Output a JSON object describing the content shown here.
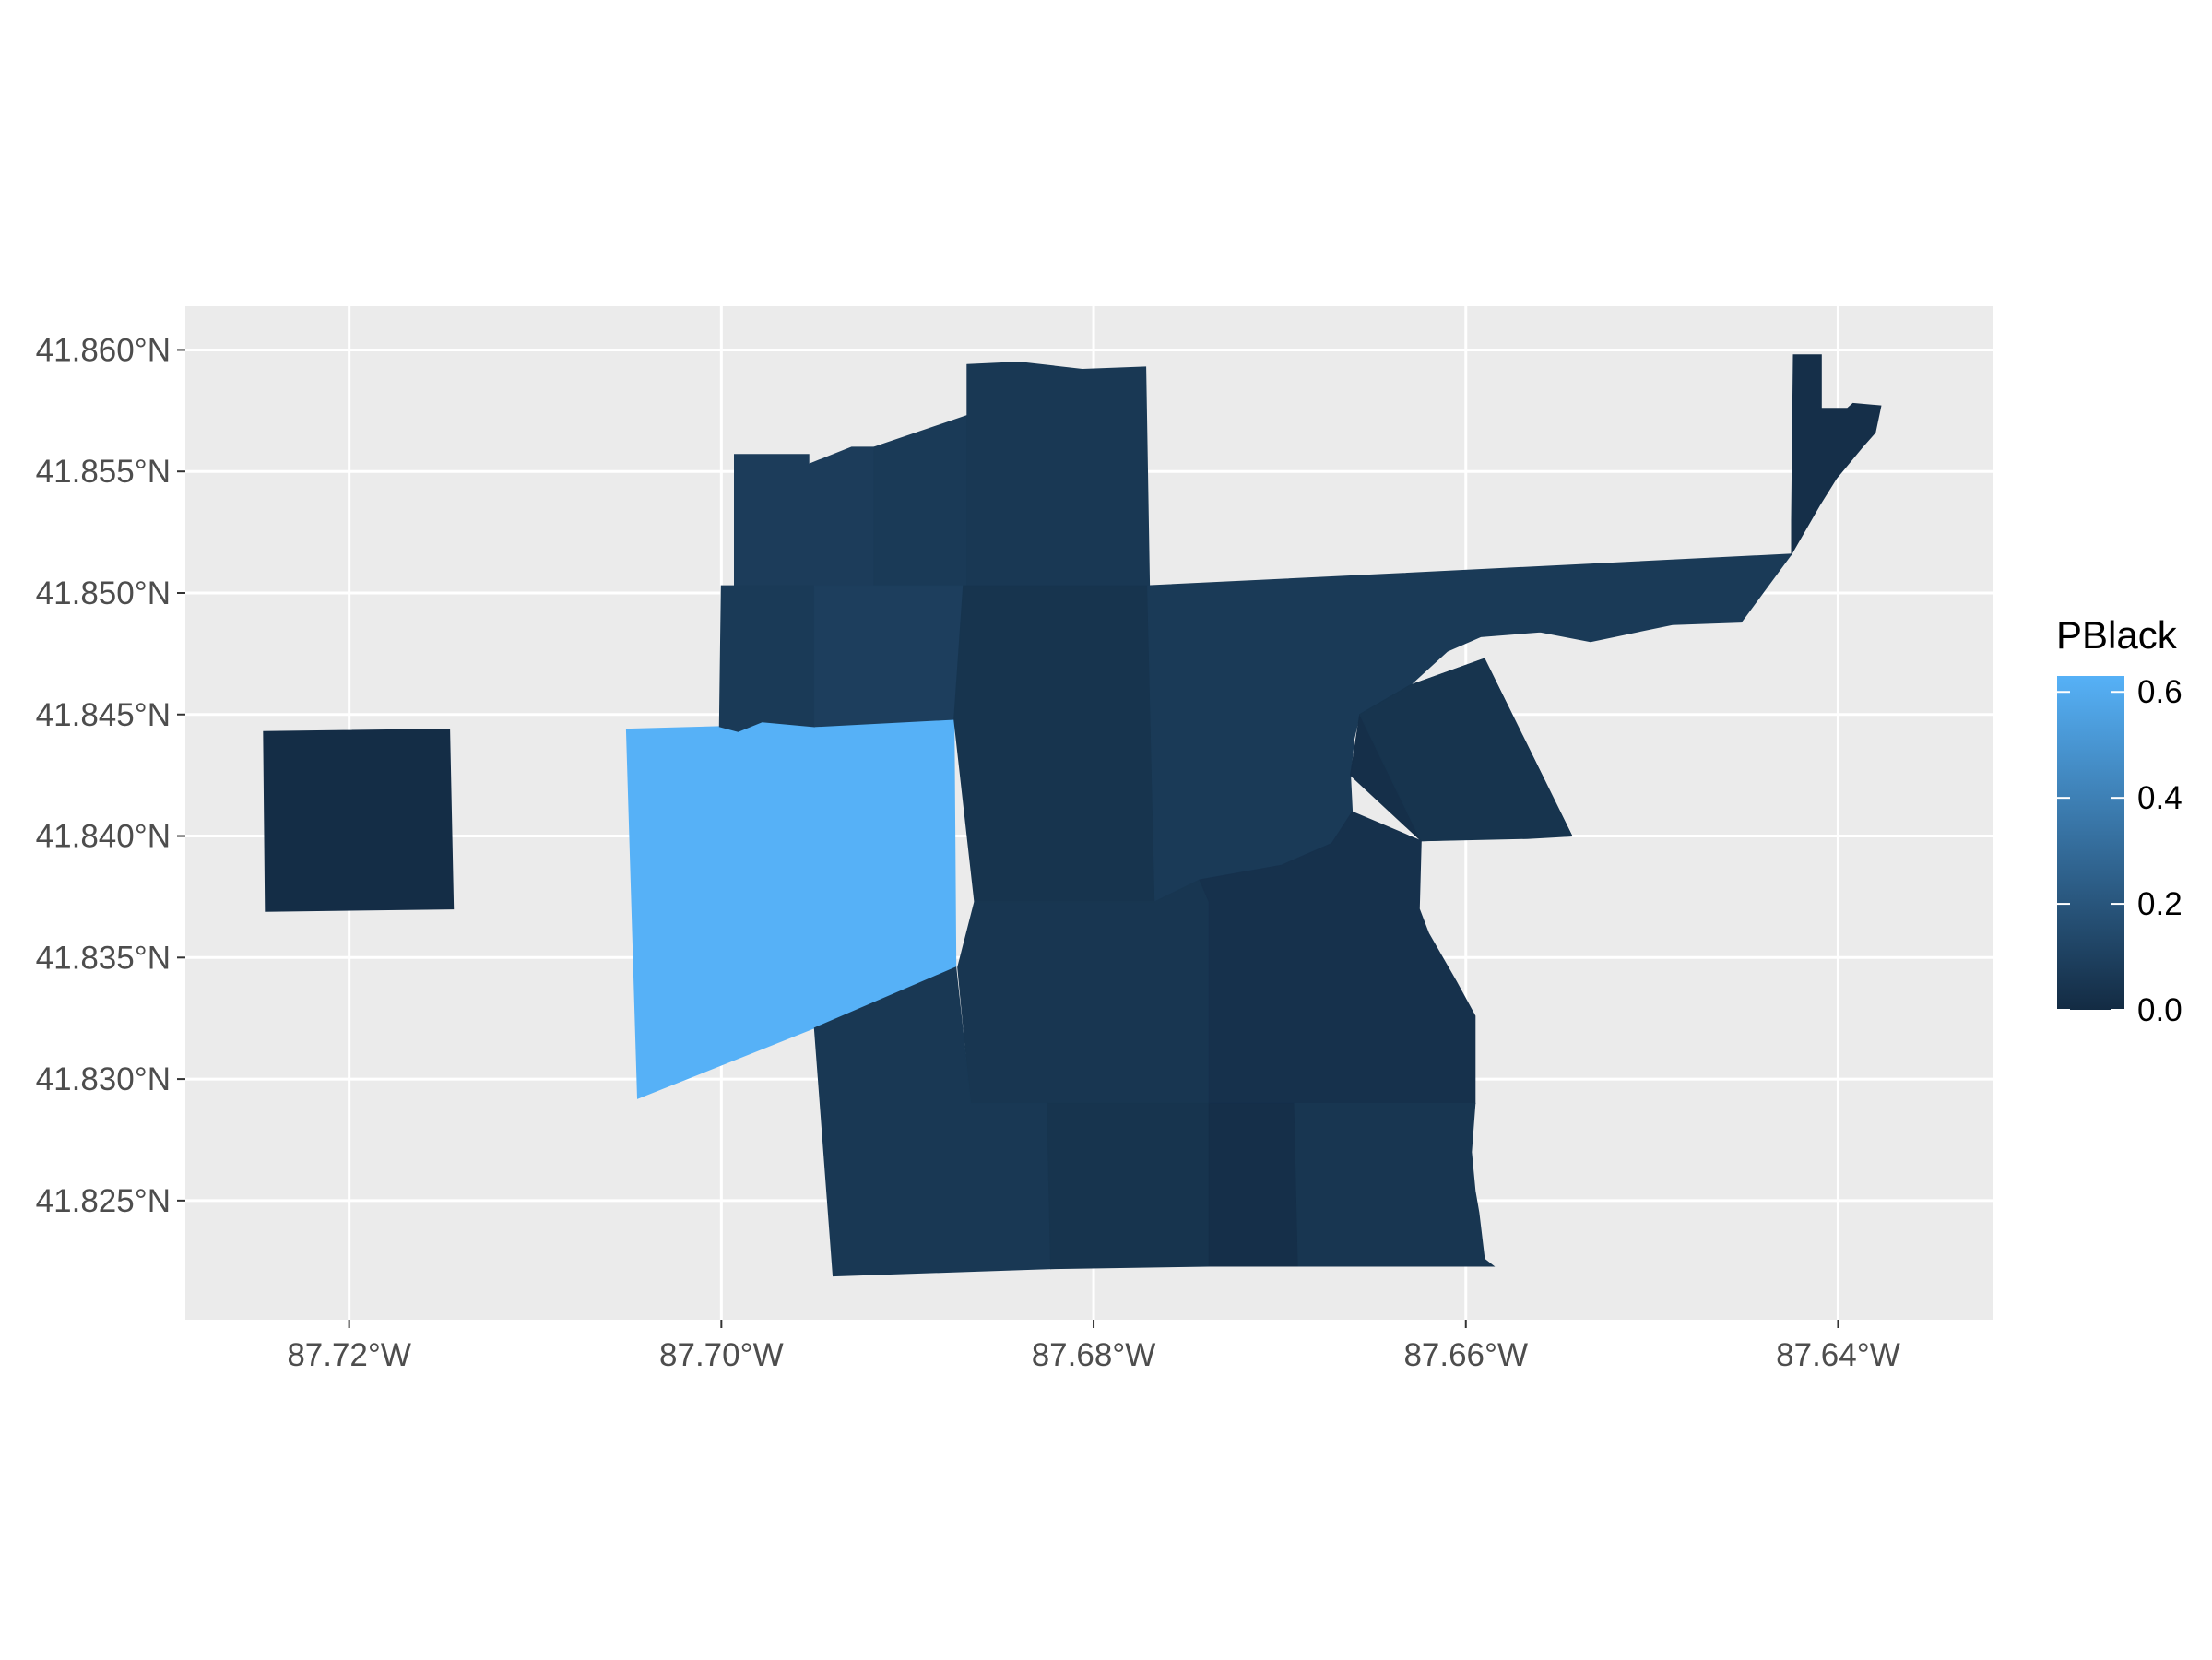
{
  "chart_data": {
    "type": "choropleth",
    "title": "",
    "xlabel": "",
    "ylabel": "",
    "grid": true,
    "legend_position": "right",
    "xlim": [
      -87.7288,
      -87.6317
    ],
    "ylim": [
      41.8201,
      41.8618
    ],
    "x_ticks": [
      {
        "value": -87.72,
        "label": "87.72°W"
      },
      {
        "value": -87.7,
        "label": "87.70°W"
      },
      {
        "value": -87.68,
        "label": "87.68°W"
      },
      {
        "value": -87.66,
        "label": "87.66°W"
      },
      {
        "value": -87.64,
        "label": "87.64°W"
      }
    ],
    "y_ticks": [
      {
        "value": 41.86,
        "label": "41.860°N"
      },
      {
        "value": 41.855,
        "label": "41.855°N"
      },
      {
        "value": 41.85,
        "label": "41.850°N"
      },
      {
        "value": 41.845,
        "label": "41.845°N"
      },
      {
        "value": 41.84,
        "label": "41.840°N"
      },
      {
        "value": 41.835,
        "label": "41.835°N"
      },
      {
        "value": 41.83,
        "label": "41.830°N"
      },
      {
        "value": 41.825,
        "label": "41.825°N"
      }
    ],
    "legend": {
      "title": "PBlack",
      "min": 0.0,
      "max": 0.63,
      "color_low": "#132B43",
      "color_high": "#56B1F7",
      "breaks": [
        {
          "value": 0.0,
          "label": "0.0"
        },
        {
          "value": 0.2,
          "label": "0.2"
        },
        {
          "value": 0.4,
          "label": "0.4"
        },
        {
          "value": 0.6,
          "label": "0.6"
        }
      ]
    },
    "regions": [
      {
        "id": "tract-west-isolated",
        "value": 0.01,
        "coords": [
          [
            -87.7246,
            41.8443
          ],
          [
            -87.7146,
            41.8444
          ],
          [
            -87.7144,
            41.837
          ],
          [
            -87.7245,
            41.8369
          ]
        ]
      },
      {
        "id": "tract-high-pblack",
        "value": 0.63,
        "coords": [
          [
            -87.7051,
            41.8444
          ],
          [
            -87.7001,
            41.8445
          ],
          [
            -87.6991,
            41.8443
          ],
          [
            -87.6978,
            41.8447
          ],
          [
            -87.6875,
            41.8448
          ],
          [
            -87.6874,
            41.8346
          ],
          [
            -87.695,
            41.8321
          ],
          [
            -87.7045,
            41.8292
          ]
        ]
      },
      {
        "id": "tract-north-west-a",
        "value": 0.08,
        "coords": [
          [
            -87.6993,
            41.8557
          ],
          [
            -87.6953,
            41.8557
          ],
          [
            -87.6953,
            41.8553
          ],
          [
            -87.693,
            41.856
          ],
          [
            -87.6918,
            41.856
          ],
          [
            -87.6918,
            41.8503
          ],
          [
            -87.6993,
            41.8503
          ]
        ]
      },
      {
        "id": "tract-north-west-b",
        "value": 0.07,
        "coords": [
          [
            -87.6918,
            41.856
          ],
          [
            -87.6868,
            41.8573
          ],
          [
            -87.6868,
            41.8503
          ],
          [
            -87.6918,
            41.8503
          ]
        ]
      },
      {
        "id": "tract-north-mid",
        "value": 0.06,
        "coords": [
          [
            -87.6868,
            41.8594
          ],
          [
            -87.684,
            41.8595
          ],
          [
            -87.6806,
            41.8592
          ],
          [
            -87.6772,
            41.8593
          ],
          [
            -87.677,
            41.8503
          ],
          [
            -87.6868,
            41.8503
          ]
        ]
      },
      {
        "id": "tract-west-upper",
        "value": 0.07,
        "coords": [
          [
            -87.7,
            41.8503
          ],
          [
            -87.695,
            41.8503
          ],
          [
            -87.695,
            41.8445
          ],
          [
            -87.6978,
            41.8447
          ],
          [
            -87.6991,
            41.8443
          ],
          [
            -87.7001,
            41.8445
          ]
        ]
      },
      {
        "id": "tract-west-upper-b",
        "value": 0.09,
        "coords": [
          [
            -87.695,
            41.8503
          ],
          [
            -87.687,
            41.8503
          ],
          [
            -87.6875,
            41.8448
          ],
          [
            -87.695,
            41.8445
          ]
        ]
      },
      {
        "id": "tract-central-upper",
        "value": 0.04,
        "coords": [
          [
            -87.687,
            41.8503
          ],
          [
            -87.6771,
            41.8503
          ],
          [
            -87.6767,
            41.8373
          ],
          [
            -87.6864,
            41.8373
          ],
          [
            -87.6875,
            41.8448
          ]
        ]
      },
      {
        "id": "tract-central-east",
        "value": 0.07,
        "coords": [
          [
            -87.6771,
            41.8503
          ],
          [
            -87.6635,
            41.8508
          ],
          [
            -87.6425,
            41.8516
          ],
          [
            -87.6452,
            41.8488
          ],
          [
            -87.6489,
            41.8487
          ],
          [
            -87.6533,
            41.848
          ],
          [
            -87.656,
            41.8484
          ],
          [
            -87.6592,
            41.8482
          ],
          [
            -87.661,
            41.8476
          ],
          [
            -87.663,
            41.8462
          ],
          [
            -87.6657,
            41.845
          ],
          [
            -87.666,
            41.844
          ],
          [
            -87.6662,
            41.8425
          ],
          [
            -87.6661,
            41.841
          ],
          [
            -87.6672,
            41.8397
          ],
          [
            -87.6699,
            41.8388
          ],
          [
            -87.6743,
            41.8382
          ],
          [
            -87.6767,
            41.8373
          ]
        ]
      },
      {
        "id": "tract-northeast-arm",
        "value": 0.02,
        "coords": [
          [
            -87.6425,
            41.8516
          ],
          [
            -87.641,
            41.8536
          ],
          [
            -87.6401,
            41.8547
          ],
          [
            -87.6387,
            41.856
          ],
          [
            -87.638,
            41.8566
          ],
          [
            -87.6377,
            41.8577
          ],
          [
            -87.6392,
            41.8578
          ],
          [
            -87.6395,
            41.8576
          ],
          [
            -87.6409,
            41.8576
          ],
          [
            -87.6409,
            41.8598
          ],
          [
            -87.6424,
            41.8598
          ],
          [
            -87.6425,
            41.853
          ]
        ]
      },
      {
        "id": "tract-east-wedge",
        "value": 0.02,
        "coords": [
          [
            -87.663,
            41.8462
          ],
          [
            -87.659,
            41.8473
          ],
          [
            -87.6543,
            41.84
          ],
          [
            -87.6624,
            41.8398
          ],
          [
            -87.6662,
            41.8425
          ],
          [
            -87.6657,
            41.845
          ]
        ]
      },
      {
        "id": "tract-east-mid",
        "value": 0.04,
        "coords": [
          [
            -87.6657,
            41.845
          ],
          [
            -87.6624,
            41.8398
          ],
          [
            -87.6567,
            41.8399
          ],
          [
            -87.6543,
            41.84
          ],
          [
            -87.659,
            41.8473
          ],
          [
            -87.663,
            41.8462
          ]
        ]
      },
      {
        "id": "tract-central-lower",
        "value": 0.05,
        "coords": [
          [
            -87.6864,
            41.8373
          ],
          [
            -87.6767,
            41.8373
          ],
          [
            -87.6743,
            41.8382
          ],
          [
            -87.6738,
            41.8373
          ],
          [
            -87.6738,
            41.8282
          ],
          [
            -87.6825,
            41.8282
          ],
          [
            -87.6825,
            41.829
          ],
          [
            -87.6866,
            41.829
          ],
          [
            -87.6873,
            41.8346
          ]
        ]
      },
      {
        "id": "tract-southeast-a",
        "value": 0.03,
        "coords": [
          [
            -87.6738,
            41.8373
          ],
          [
            -87.6743,
            41.8382
          ],
          [
            -87.6699,
            41.8388
          ],
          [
            -87.6672,
            41.8397
          ],
          [
            -87.6661,
            41.841
          ],
          [
            -87.6624,
            41.8398
          ],
          [
            -87.6625,
            41.837
          ],
          [
            -87.662,
            41.836
          ],
          [
            -87.6605,
            41.834
          ],
          [
            -87.6595,
            41.8326
          ],
          [
            -87.6595,
            41.829
          ],
          [
            -87.6738,
            41.829
          ]
        ]
      },
      {
        "id": "tract-south-west",
        "value": 0.06,
        "coords": [
          [
            -87.695,
            41.8321
          ],
          [
            -87.6874,
            41.8346
          ],
          [
            -87.6866,
            41.829
          ],
          [
            -87.6825,
            41.829
          ],
          [
            -87.6823,
            41.8222
          ],
          [
            -87.694,
            41.8219
          ]
        ]
      },
      {
        "id": "tract-south-mid",
        "value": 0.04,
        "coords": [
          [
            -87.6825,
            41.829
          ],
          [
            -87.6738,
            41.829
          ],
          [
            -87.6738,
            41.8223
          ],
          [
            -87.6823,
            41.8222
          ]
        ]
      },
      {
        "id": "tract-south-mid-b",
        "value": 0.02,
        "coords": [
          [
            -87.6738,
            41.829
          ],
          [
            -87.6692,
            41.829
          ],
          [
            -87.669,
            41.8223
          ],
          [
            -87.6738,
            41.8223
          ]
        ]
      },
      {
        "id": "tract-south-east",
        "value": 0.05,
        "coords": [
          [
            -87.6692,
            41.829
          ],
          [
            -87.6595,
            41.829
          ],
          [
            -87.6597,
            41.827
          ],
          [
            -87.6595,
            41.8254
          ],
          [
            -87.6593,
            41.8245
          ],
          [
            -87.659,
            41.8226
          ],
          [
            -87.6585,
            41.8223
          ],
          [
            -87.669,
            41.8223
          ]
        ]
      }
    ]
  }
}
